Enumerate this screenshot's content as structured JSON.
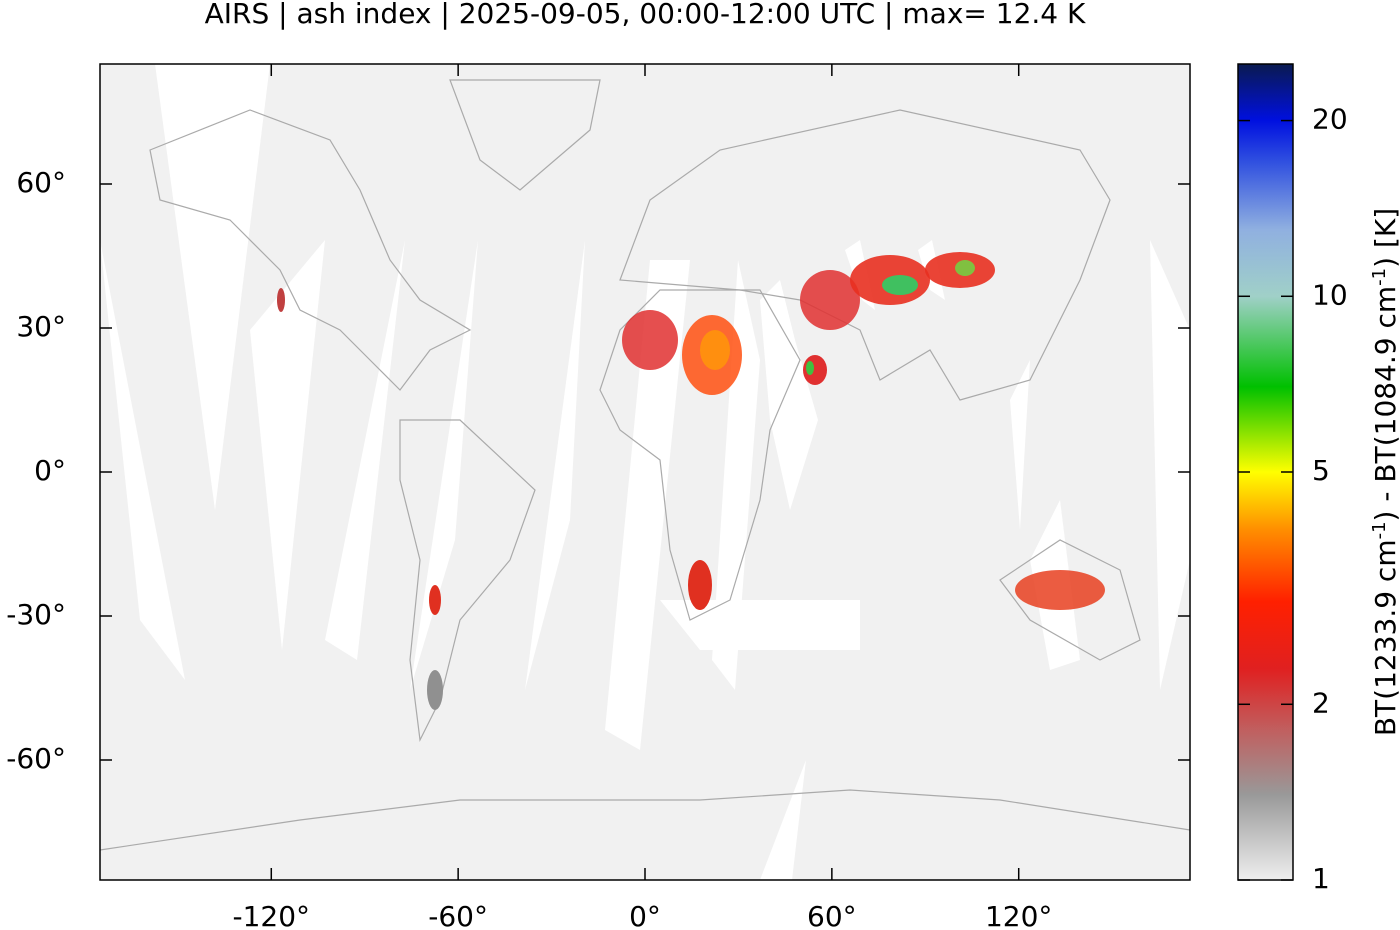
{
  "chart_data": {
    "type": "map",
    "title": "AIRS | ash index | 2025-09-05, 00:00-12:00 UTC | max= 12.4 K",
    "xlim": [
      -175,
      175
    ],
    "ylim": [
      -85,
      85
    ],
    "xticks": [
      {
        "value": -120,
        "label": "-120°"
      },
      {
        "value": -60,
        "label": "-60°"
      },
      {
        "value": 0,
        "label": "0°"
      },
      {
        "value": 60,
        "label": "60°"
      },
      {
        "value": 120,
        "label": "120°"
      }
    ],
    "yticks": [
      {
        "value": 60,
        "label": "60°"
      },
      {
        "value": 30,
        "label": "30°"
      },
      {
        "value": 0,
        "label": "0°"
      },
      {
        "value": -30,
        "label": "-30°"
      },
      {
        "value": -60,
        "label": "-60°"
      }
    ],
    "colorbar": {
      "scale": "log",
      "lim": [
        1,
        25
      ],
      "ticks": [
        1,
        2,
        5,
        10,
        20
      ],
      "label": [
        "BT(1233.9 cm",
        "-1",
        ") - BT(1084.9 cm",
        "-1",
        ") [K]"
      ],
      "colormap": [
        {
          "value": 1,
          "color": "#eeeeee"
        },
        {
          "value": 1.4,
          "color": "#999999"
        },
        {
          "value": 1.8,
          "color": "#c06060"
        },
        {
          "value": 2.3,
          "color": "#e02020"
        },
        {
          "value": 3,
          "color": "#ff2000"
        },
        {
          "value": 4,
          "color": "#ff9000"
        },
        {
          "value": 5,
          "color": "#ffff00"
        },
        {
          "value": 7,
          "color": "#00c000"
        },
        {
          "value": 10,
          "color": "#a0d0c8"
        },
        {
          "value": 13,
          "color": "#90b0e0"
        },
        {
          "value": 17,
          "color": "#3050e0"
        },
        {
          "value": 20,
          "color": "#0010e0"
        },
        {
          "value": 25,
          "color": "#0a1a50"
        }
      ]
    }
  }
}
